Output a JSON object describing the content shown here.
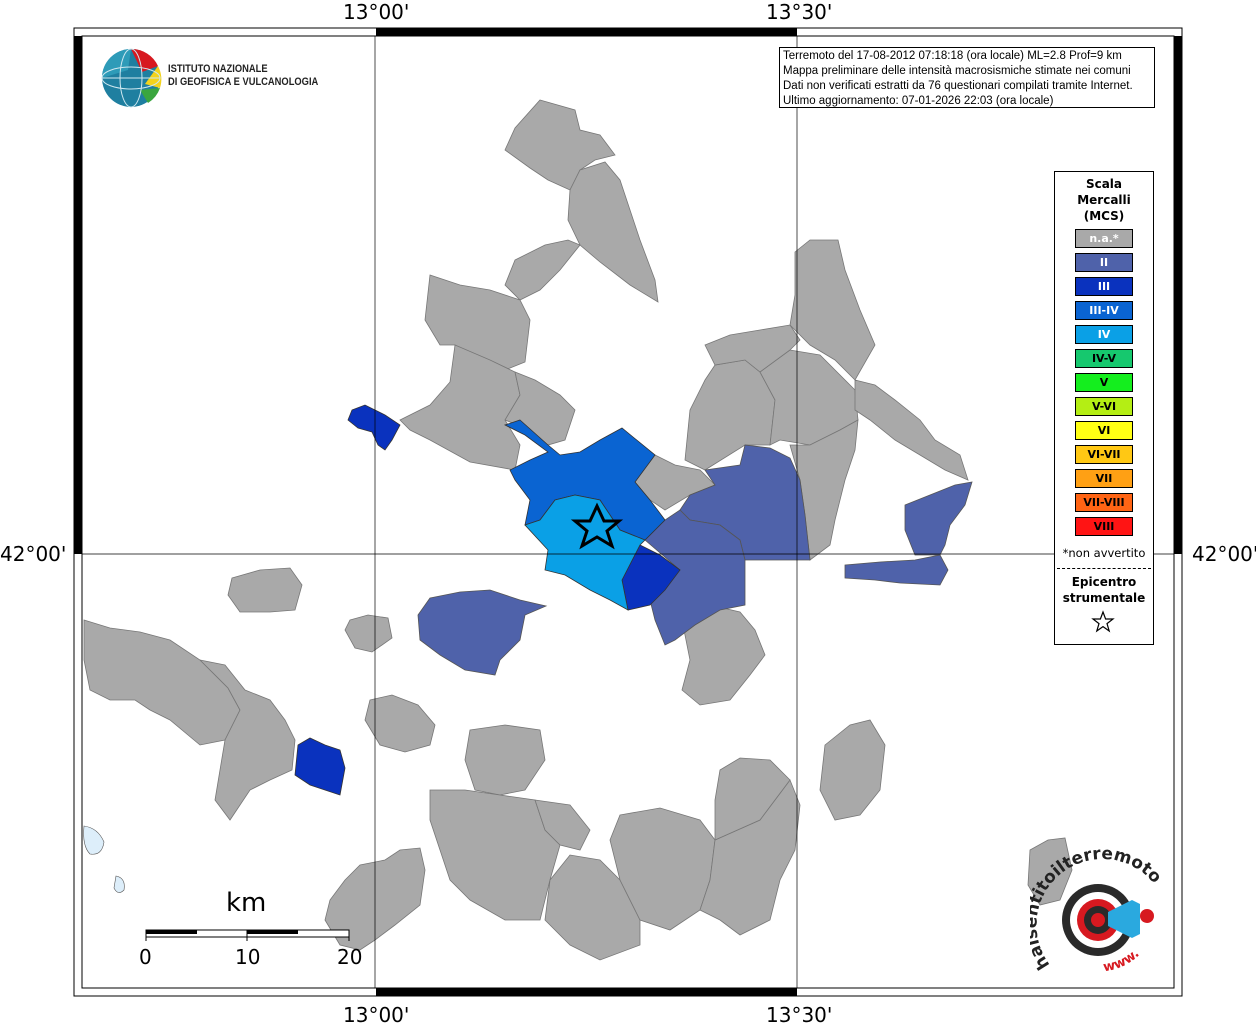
{
  "coordinates": {
    "top_left": "13°00'",
    "top_right": "13°30'",
    "bottom_left": "13°00'",
    "bottom_right": "13°30'",
    "left_middle": "42°00'",
    "right_middle": "42°00'"
  },
  "logo": {
    "line1": "ISTITUTO NAZIONALE",
    "line2": "DI GEOFISICA E VULCANOLOGIA"
  },
  "info": {
    "line1": "Terremoto del 17-08-2012 07:18:18 (ora locale) ML=2.8 Prof=9 km",
    "line2": "Mappa preliminare delle intensità macrosismiche stimate nei comuni",
    "line3": "Dati non verificati estratti da 76 questionari compilati tramite Internet.",
    "line4": "Ultimo aggiornamento: 07-01-2026 22:03 (ora locale)"
  },
  "legend": {
    "title1": "Scala",
    "title2": "Mercalli",
    "title3": "(MCS)",
    "items": [
      {
        "label": "n.a.*",
        "color": "#a9a9a9",
        "text_color": "#ffffff"
      },
      {
        "label": "II",
        "color": "#4f62aa",
        "text_color": "#ffffff"
      },
      {
        "label": "III",
        "color": "#0a32be",
        "text_color": "#ffffff"
      },
      {
        "label": "III-IV",
        "color": "#0a64d2",
        "text_color": "#ffffff"
      },
      {
        "label": "IV",
        "color": "#0aa0e6",
        "text_color": "#ffffff"
      },
      {
        "label": "IV-V",
        "color": "#16c86e",
        "text_color": "#000000"
      },
      {
        "label": "V",
        "color": "#14ee1e",
        "text_color": "#000000"
      },
      {
        "label": "V-VI",
        "color": "#b4ee14",
        "text_color": "#000000"
      },
      {
        "label": "VI",
        "color": "#ffff14",
        "text_color": "#000000"
      },
      {
        "label": "VI-VII",
        "color": "#ffc814",
        "text_color": "#000000"
      },
      {
        "label": "VII",
        "color": "#ffa014",
        "text_color": "#000000"
      },
      {
        "label": "VII-VIII",
        "color": "#ff6414",
        "text_color": "#000000"
      },
      {
        "label": "VIII",
        "color": "#ff1414",
        "text_color": "#000000"
      }
    ],
    "note": "*non avvertito",
    "epicenter1": "Epicentro",
    "epicenter2": "strumentale",
    "epicenter_icon": "star-outline-icon"
  },
  "scale_bar": {
    "unit": "km",
    "ticks": [
      "0",
      "10",
      "20"
    ]
  },
  "badge": {
    "text_top": "haisentitoilterremoto.it",
    "text_bottom": "www.",
    "icon": "target-speaker-icon"
  },
  "colors": {
    "na": "#a9a9a9",
    "II": "#4f62aa",
    "III": "#0a32be",
    "III-IV": "#0a64d2",
    "IV": "#0aa0e6",
    "water": "#ddeefa"
  }
}
